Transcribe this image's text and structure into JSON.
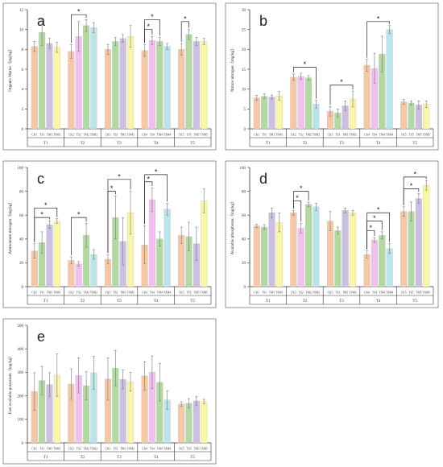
{
  "colors": [
    "#f6c7a4",
    "#f2bff0",
    "#b3d9a3",
    "#cbc0e0",
    "#b8e4ea",
    "#fbf6a6"
  ],
  "chart_data": [
    {
      "id": "a",
      "type": "bar",
      "letter": "a",
      "ylabel": "Organic Matter（mg/kg）",
      "ylim": [
        0,
        12
      ],
      "yticks": [
        0,
        2,
        4,
        6,
        8,
        10,
        12
      ],
      "groups": [
        {
          "name": "T1",
          "bars": [
            {
              "label": "CK1",
              "value": 8.3,
              "err": 0.5,
              "color": 0
            },
            {
              "label": "TS1",
              "value": 9.7,
              "err": 1.3,
              "color": 2
            },
            {
              "label": "TM1",
              "value": 8.6,
              "err": 0.5,
              "color": 3
            },
            {
              "label": "TSM1",
              "value": 8.2,
              "err": 0.5,
              "color": 5
            }
          ]
        },
        {
          "name": "T2",
          "bars": [
            {
              "label": "CK2",
              "value": 7.8,
              "err": 0.7,
              "color": 0
            },
            {
              "label": "TS2",
              "value": 9.3,
              "err": 1.5,
              "color": 1
            },
            {
              "label": "TM2",
              "value": 10.4,
              "err": 0.6,
              "color": 2
            },
            {
              "label": "TSM2",
              "value": 10.2,
              "err": 0.5,
              "color": 4
            }
          ]
        },
        {
          "name": "T3",
          "bars": [
            {
              "label": "CK3",
              "value": 8.0,
              "err": 0.5,
              "color": 0
            },
            {
              "label": "TS3",
              "value": 8.8,
              "err": 0.4,
              "color": 2
            },
            {
              "label": "TM3",
              "value": 9.1,
              "err": 0.4,
              "color": 3
            },
            {
              "label": "TSM3",
              "value": 9.3,
              "err": 1.1,
              "color": 5
            }
          ]
        },
        {
          "name": "T4",
          "bars": [
            {
              "label": "CK4",
              "value": 7.9,
              "err": 0.6,
              "color": 0
            },
            {
              "label": "TS4",
              "value": 8.9,
              "err": 0.4,
              "color": 1
            },
            {
              "label": "TM4",
              "value": 8.8,
              "err": 0.4,
              "color": 2
            },
            {
              "label": "TSM4",
              "value": 8.3,
              "err": 0.3,
              "color": 4
            }
          ]
        },
        {
          "name": "T5",
          "bars": [
            {
              "label": "CK5",
              "value": 8.0,
              "err": 0.6,
              "color": 0
            },
            {
              "label": "TS5",
              "value": 9.5,
              "err": 0.5,
              "color": 2
            },
            {
              "label": "TM5",
              "value": 8.8,
              "err": 0.4,
              "color": 3
            },
            {
              "label": "TSM5",
              "value": 8.8,
              "err": 0.3,
              "color": 5
            }
          ]
        }
      ],
      "significance": [
        {
          "group": 1,
          "from": 0,
          "to": 2,
          "level": 11.5
        },
        {
          "group": 3,
          "from": 0,
          "to": 1,
          "level": 10.0
        },
        {
          "group": 3,
          "from": 0,
          "to": 2,
          "level": 11.0
        },
        {
          "group": 4,
          "from": 0,
          "to": 1,
          "level": 10.8
        }
      ],
      "star_label": "*"
    },
    {
      "id": "b",
      "type": "bar",
      "letter": "b",
      "ylabel": "Nitrate nitrogen（mg/kg）",
      "ylim": [
        0,
        30
      ],
      "yticks": [
        0,
        5,
        10,
        15,
        20,
        25,
        30
      ],
      "groups": [
        {
          "name": "T1",
          "bars": [
            {
              "label": "CK1",
              "value": 7.8,
              "err": 0.6,
              "color": 0
            },
            {
              "label": "TS1",
              "value": 8.2,
              "err": 0.6,
              "color": 2
            },
            {
              "label": "TM1",
              "value": 8.0,
              "err": 0.5,
              "color": 3
            },
            {
              "label": "TSM1",
              "value": 8.3,
              "err": 1.1,
              "color": 5
            }
          ]
        },
        {
          "name": "T2",
          "bars": [
            {
              "label": "CK2",
              "value": 13.0,
              "err": 0.8,
              "color": 0
            },
            {
              "label": "TS2",
              "value": 13.2,
              "err": 0.8,
              "color": 1
            },
            {
              "label": "TM2",
              "value": 12.8,
              "err": 0.6,
              "color": 2
            },
            {
              "label": "TSM2",
              "value": 6.2,
              "err": 1.0,
              "color": 4
            }
          ]
        },
        {
          "name": "T3",
          "bars": [
            {
              "label": "CK3",
              "value": 4.4,
              "err": 1.2,
              "color": 0
            },
            {
              "label": "TS3",
              "value": 4.0,
              "err": 1.0,
              "color": 2
            },
            {
              "label": "TM3",
              "value": 5.8,
              "err": 1.2,
              "color": 3
            },
            {
              "label": "TSM3",
              "value": 7.5,
              "err": 2.0,
              "color": 5
            }
          ]
        },
        {
          "name": "T4",
          "bars": [
            {
              "label": "CK4",
              "value": 16.0,
              "err": 1.5,
              "color": 0
            },
            {
              "label": "TS4",
              "value": 15.2,
              "err": 3.8,
              "color": 1
            },
            {
              "label": "TM4",
              "value": 18.8,
              "err": 4.5,
              "color": 2
            },
            {
              "label": "TSM4",
              "value": 25.0,
              "err": 1.0,
              "color": 4
            }
          ]
        },
        {
          "name": "T5",
          "bars": [
            {
              "label": "CK5",
              "value": 6.8,
              "err": 0.6,
              "color": 0
            },
            {
              "label": "TS5",
              "value": 6.5,
              "err": 0.5,
              "color": 2
            },
            {
              "label": "TM5",
              "value": 6.0,
              "err": 1.0,
              "color": 3
            },
            {
              "label": "TSM5",
              "value": 6.2,
              "err": 0.8,
              "color": 5
            }
          ]
        }
      ],
      "significance": [
        {
          "group": 1,
          "from": 0,
          "to": 3,
          "level": 15.5
        },
        {
          "group": 2,
          "from": 0,
          "to": 3,
          "level": 11.0
        },
        {
          "group": 3,
          "from": 0,
          "to": 3,
          "level": 27.0
        }
      ],
      "star_label": "*"
    },
    {
      "id": "c",
      "type": "bar",
      "letter": "c",
      "ylabel": "Ammonium nitrogen（mg/kg）",
      "ylim": [
        0,
        100
      ],
      "yticks": [
        0,
        20,
        40,
        60,
        80,
        100
      ],
      "groups": [
        {
          "name": "T1",
          "bars": [
            {
              "label": "CK1",
              "value": 30,
              "err": 6,
              "color": 0
            },
            {
              "label": "TS1",
              "value": 37,
              "err": 9,
              "color": 2
            },
            {
              "label": "TM1",
              "value": 52,
              "err": 3,
              "color": 3
            },
            {
              "label": "TSM1",
              "value": 55,
              "err": 2,
              "color": 5
            }
          ]
        },
        {
          "name": "T2",
          "bars": [
            {
              "label": "CK2",
              "value": 22,
              "err": 3,
              "color": 0
            },
            {
              "label": "TS2",
              "value": 19,
              "err": 2,
              "color": 1
            },
            {
              "label": "TM2",
              "value": 43,
              "err": 10,
              "color": 2
            },
            {
              "label": "TSM2",
              "value": 27,
              "err": 4,
              "color": 4
            }
          ]
        },
        {
          "name": "T3",
          "bars": [
            {
              "label": "CK3",
              "value": 23,
              "err": 4,
              "color": 0
            },
            {
              "label": "TS3",
              "value": 58,
              "err": 18,
              "color": 2
            },
            {
              "label": "TM3",
              "value": 38,
              "err": 20,
              "color": 3
            },
            {
              "label": "TSM3",
              "value": 62,
              "err": 18,
              "color": 5
            }
          ]
        },
        {
          "name": "T4",
          "bars": [
            {
              "label": "CK4",
              "value": 35,
              "err": 16,
              "color": 0
            },
            {
              "label": "TS4",
              "value": 73,
              "err": 10,
              "color": 1
            },
            {
              "label": "TM4",
              "value": 40,
              "err": 6,
              "color": 2
            },
            {
              "label": "TSM4",
              "value": 65,
              "err": 5,
              "color": 4
            }
          ]
        },
        {
          "name": "T5",
          "bars": [
            {
              "label": "CK5",
              "value": 43,
              "err": 7,
              "color": 0
            },
            {
              "label": "TS5",
              "value": 42,
              "err": 12,
              "color": 2
            },
            {
              "label": "TM5",
              "value": 36,
              "err": 14,
              "color": 3
            },
            {
              "label": "TSM5",
              "value": 72,
              "err": 10,
              "color": 5
            }
          ]
        }
      ],
      "significance": [
        {
          "group": 0,
          "from": 0,
          "to": 2,
          "level": 58
        },
        {
          "group": 0,
          "from": 0,
          "to": 3,
          "level": 66
        },
        {
          "group": 1,
          "from": 0,
          "to": 2,
          "level": 58
        },
        {
          "group": 2,
          "from": 0,
          "to": 1,
          "level": 80
        },
        {
          "group": 2,
          "from": 0,
          "to": 3,
          "level": 90
        },
        {
          "group": 3,
          "from": 0,
          "to": 1,
          "level": 88
        },
        {
          "group": 3,
          "from": 0,
          "to": 3,
          "level": 94
        }
      ],
      "star_label": "*"
    },
    {
      "id": "d",
      "type": "bar",
      "letter": "d",
      "ylabel": "Available phosphorus（mg/kg）",
      "ylim": [
        0,
        100
      ],
      "yticks": [
        0,
        20,
        40,
        60,
        80,
        100
      ],
      "groups": [
        {
          "name": "T1",
          "bars": [
            {
              "label": "CK1",
              "value": 51,
              "err": 1.5,
              "color": 0
            },
            {
              "label": "TS1",
              "value": 50,
              "err": 2,
              "color": 2
            },
            {
              "label": "TM1",
              "value": 62,
              "err": 4,
              "color": 3
            },
            {
              "label": "TSM1",
              "value": 54,
              "err": 8,
              "color": 5
            }
          ]
        },
        {
          "name": "T2",
          "bars": [
            {
              "label": "CK2",
              "value": 62,
              "err": 2,
              "color": 0
            },
            {
              "label": "TS2",
              "value": 49,
              "err": 4,
              "color": 1
            },
            {
              "label": "TM2",
              "value": 69,
              "err": 2,
              "color": 2
            },
            {
              "label": "TSM2",
              "value": 67,
              "err": 3,
              "color": 4
            }
          ]
        },
        {
          "name": "T3",
          "bars": [
            {
              "label": "CK3",
              "value": 55,
              "err": 8,
              "color": 0
            },
            {
              "label": "TS3",
              "value": 47,
              "err": 3,
              "color": 2
            },
            {
              "label": "TM3",
              "value": 64,
              "err": 2,
              "color": 3
            },
            {
              "label": "TSM3",
              "value": 62,
              "err": 2,
              "color": 5
            }
          ]
        },
        {
          "name": "T4",
          "bars": [
            {
              "label": "CK4",
              "value": 27,
              "err": 3,
              "color": 0
            },
            {
              "label": "TS4",
              "value": 39,
              "err": 2,
              "color": 1
            },
            {
              "label": "TM4",
              "value": 43,
              "err": 3,
              "color": 2
            },
            {
              "label": "TSM4",
              "value": 32,
              "err": 4,
              "color": 4
            }
          ]
        },
        {
          "name": "T5",
          "bars": [
            {
              "label": "CK5",
              "value": 63,
              "err": 4,
              "color": 0
            },
            {
              "label": "TS5",
              "value": 63,
              "err": 8,
              "color": 2
            },
            {
              "label": "TM5",
              "value": 74,
              "err": 4,
              "color": 3
            },
            {
              "label": "TSM5",
              "value": 85,
              "err": 4,
              "color": 5
            }
          ]
        }
      ],
      "significance": [
        {
          "group": 1,
          "from": 0,
          "to": 1,
          "level": 72
        },
        {
          "group": 1,
          "from": 0,
          "to": 2,
          "level": 80
        },
        {
          "group": 3,
          "from": 0,
          "to": 1,
          "level": 47
        },
        {
          "group": 3,
          "from": 0,
          "to": 2,
          "level": 55
        },
        {
          "group": 3,
          "from": 0,
          "to": 3,
          "level": 62
        },
        {
          "group": 4,
          "from": 0,
          "to": 2,
          "level": 82
        },
        {
          "group": 4,
          "from": 0,
          "to": 3,
          "level": 92
        }
      ],
      "star_label": "*"
    },
    {
      "id": "e",
      "type": "bar",
      "letter": "e",
      "ylabel": "Fast available potassium（mg/kg）",
      "ylim": [
        0,
        500
      ],
      "yticks": [
        0,
        100,
        200,
        300,
        400,
        500
      ],
      "groups": [
        {
          "name": "T1",
          "bars": [
            {
              "label": "CK1",
              "value": 218,
              "err": 80,
              "color": 0
            },
            {
              "label": "TS1",
              "value": 265,
              "err": 60,
              "color": 2
            },
            {
              "label": "TM1",
              "value": 248,
              "err": 50,
              "color": 3
            },
            {
              "label": "TSM1",
              "value": 288,
              "err": 90,
              "color": 5
            }
          ]
        },
        {
          "name": "T2",
          "bars": [
            {
              "label": "CK2",
              "value": 250,
              "err": 65,
              "color": 0
            },
            {
              "label": "TS2",
              "value": 287,
              "err": 75,
              "color": 1
            },
            {
              "label": "TM2",
              "value": 243,
              "err": 60,
              "color": 2
            },
            {
              "label": "TSM2",
              "value": 298,
              "err": 70,
              "color": 4
            }
          ]
        },
        {
          "name": "T3",
          "bars": [
            {
              "label": "CK3",
              "value": 272,
              "err": 90,
              "color": 0
            },
            {
              "label": "TS3",
              "value": 318,
              "err": 75,
              "color": 2
            },
            {
              "label": "TM3",
              "value": 270,
              "err": 40,
              "color": 3
            },
            {
              "label": "TSM3",
              "value": 260,
              "err": 40,
              "color": 5
            }
          ]
        },
        {
          "name": "T4",
          "bars": [
            {
              "label": "CK4",
              "value": 285,
              "err": 60,
              "color": 0
            },
            {
              "label": "TS4",
              "value": 300,
              "err": 70,
              "color": 1
            },
            {
              "label": "TM4",
              "value": 258,
              "err": 80,
              "color": 2
            },
            {
              "label": "TSM4",
              "value": 182,
              "err": 40,
              "color": 4
            }
          ]
        },
        {
          "name": "T5",
          "bars": [
            {
              "label": "CK5",
              "value": 165,
              "err": 10,
              "color": 0
            },
            {
              "label": "TS5",
              "value": 168,
              "err": 20,
              "color": 2
            },
            {
              "label": "TM5",
              "value": 178,
              "err": 20,
              "color": 3
            },
            {
              "label": "TSM5",
              "value": 175,
              "err": 10,
              "color": 5
            }
          ]
        }
      ],
      "significance": [],
      "star_label": "*"
    }
  ]
}
